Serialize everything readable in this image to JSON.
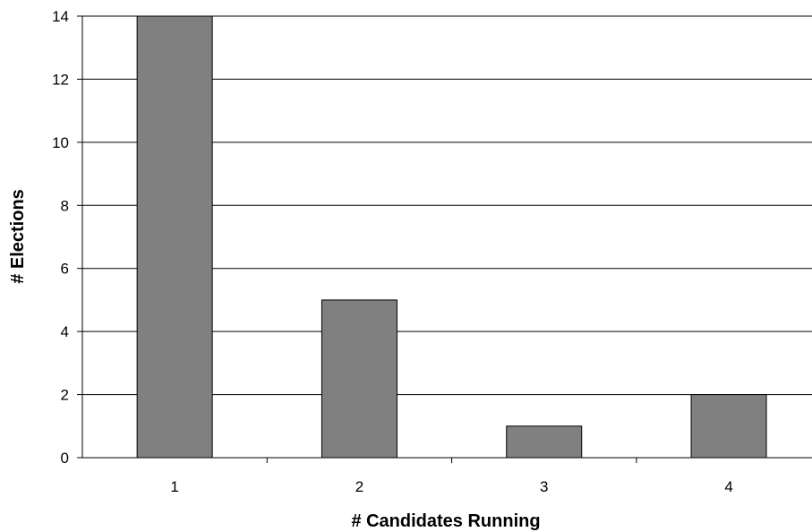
{
  "chart_data": {
    "type": "bar",
    "categories": [
      "1",
      "2",
      "3",
      "4"
    ],
    "values": [
      14,
      5,
      1,
      2
    ],
    "xlabel": "# Candidates Running",
    "ylabel": "# Elections",
    "ylim": [
      0,
      14
    ],
    "yticks": [
      0,
      2,
      4,
      6,
      8,
      10,
      12,
      14
    ],
    "grid": true,
    "legend": "none",
    "bar_color": "#808080",
    "bar_edge_color": "#000000"
  }
}
